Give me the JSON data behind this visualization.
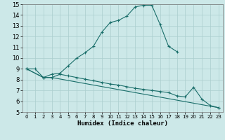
{
  "background_color": "#cce8e8",
  "grid_color": "#aacece",
  "line_color": "#1a6e6a",
  "xlabel": "Humidex (Indice chaleur)",
  "xlim": [
    -0.5,
    23.5
  ],
  "ylim": [
    5,
    15
  ],
  "xticks": [
    0,
    1,
    2,
    3,
    4,
    5,
    6,
    7,
    8,
    9,
    10,
    11,
    12,
    13,
    14,
    15,
    16,
    17,
    18,
    19,
    20,
    21,
    22,
    23
  ],
  "yticks": [
    5,
    6,
    7,
    8,
    9,
    10,
    11,
    12,
    13,
    14,
    15
  ],
  "line1_x": [
    0,
    1,
    2,
    3,
    4,
    5,
    6,
    7,
    8,
    9,
    10,
    11,
    12,
    13,
    14,
    15,
    16,
    17,
    18
  ],
  "line1_y": [
    9,
    9,
    8.2,
    8.5,
    8.6,
    9.3,
    10.0,
    10.5,
    11.1,
    12.4,
    13.3,
    13.5,
    13.9,
    14.75,
    14.9,
    14.9,
    13.1,
    11.1,
    10.6
  ],
  "line2_x": [
    0,
    2,
    3,
    4,
    5,
    6,
    7,
    8,
    9,
    10,
    11,
    12,
    13,
    14,
    15,
    16,
    17,
    18,
    19,
    20,
    21,
    22,
    23
  ],
  "line2_y": [
    9,
    8.2,
    8.2,
    8.5,
    8.35,
    8.2,
    8.05,
    7.9,
    7.75,
    7.6,
    7.5,
    7.35,
    7.2,
    7.1,
    7.0,
    6.9,
    6.8,
    6.5,
    6.4,
    7.3,
    6.2,
    5.6,
    5.4
  ],
  "line3_x": [
    0,
    2,
    3,
    23
  ],
  "line3_y": [
    9,
    8.2,
    8.2,
    5.4
  ]
}
